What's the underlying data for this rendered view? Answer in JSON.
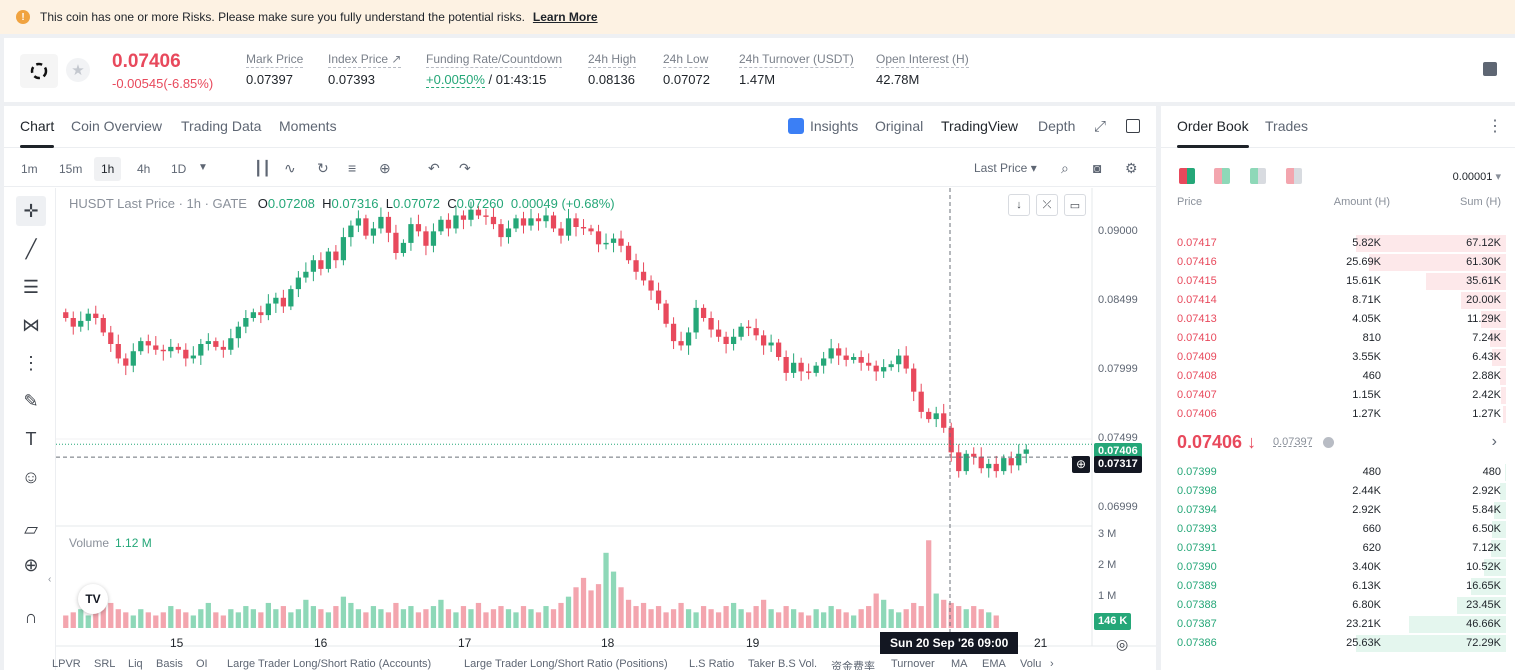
{
  "risk_banner": {
    "text": "This coin has one or more Risks. Please make sure you fully understand the potential risks.",
    "link": "Learn More"
  },
  "ticker": {
    "last_price": "0.07406",
    "change": "-0.00545(-6.85%)",
    "stats": [
      {
        "label": "Mark Price",
        "value": "0.07397"
      },
      {
        "label": "Index Price ↗",
        "value": "0.07393"
      },
      {
        "label": "Funding Rate/Countdown",
        "value_rate": "+0.0050%",
        "value_countdown": "/ 01:43:15"
      },
      {
        "label": "24h High",
        "value": "0.08136"
      },
      {
        "label": "24h Low",
        "value": "0.07072"
      },
      {
        "label": "24h Turnover (USDT)",
        "value": "1.47M"
      },
      {
        "label": "Open Interest (H)",
        "value": "42.78M"
      }
    ]
  },
  "chart_tabs": {
    "chart": "Chart",
    "coin_overview": "Coin Overview",
    "trading_data": "Trading Data",
    "moments": "Moments",
    "insights": "Insights",
    "original": "Original",
    "tradingview": "TradingView",
    "depth": "Depth"
  },
  "timeframes": [
    "1m",
    "15m",
    "1h",
    "4h",
    "1D"
  ],
  "toolbar": {
    "price_type": "Last Price"
  },
  "legend": {
    "symbol": "HUSDT Last Price · 1h · GATE",
    "o_lbl": "O",
    "o": "0.07208",
    "h_lbl": "H",
    "h": "0.07316",
    "l_lbl": "L",
    "l": "0.07072",
    "c_lbl": "C",
    "c": "0.07260",
    "chg": "0.00049 (+0.68%)"
  },
  "volume_legend": {
    "label": "Volume",
    "value": "1.12 M"
  },
  "colors": {
    "up": "#25a778",
    "down": "#e8495c",
    "up_vol": "#8ed8b8",
    "down_vol": "#f3a5ae"
  },
  "chart_data": {
    "type": "candlestick",
    "title": "HUSDT Last Price · 1h · GATE",
    "y_ticks": [
      "0.09000",
      "0.08499",
      "0.07999",
      "0.07499",
      "0.06999"
    ],
    "y_range": [
      0.0684,
      0.0918
    ],
    "x_ticks": [
      "15",
      "16",
      "17",
      "18",
      "19",
      "21"
    ],
    "last_price_tag": "0.07406",
    "crosshair_price_tag": "0.07317",
    "crosshair_date": "Sun 20 Sep '26   09:00",
    "volume_ticks": [
      "3 M",
      "2 M",
      "1 M"
    ],
    "volume_tag": "146 K",
    "close_series": [
      0.0828,
      0.0822,
      0.0826,
      0.0831,
      0.0828,
      0.0818,
      0.081,
      0.08,
      0.0795,
      0.0805,
      0.0812,
      0.0809,
      0.0806,
      0.0805,
      0.0808,
      0.0806,
      0.08,
      0.0802,
      0.081,
      0.0812,
      0.0808,
      0.0806,
      0.0814,
      0.0822,
      0.0828,
      0.0832,
      0.083,
      0.0838,
      0.0842,
      0.0836,
      0.0848,
      0.0856,
      0.086,
      0.0868,
      0.0862,
      0.0874,
      0.0868,
      0.0884,
      0.0892,
      0.0897,
      0.0885,
      0.089,
      0.0898,
      0.0887,
      0.0873,
      0.088,
      0.0893,
      0.0888,
      0.0878,
      0.0888,
      0.0896,
      0.089,
      0.0899,
      0.0896,
      0.0903,
      0.0899,
      0.0898,
      0.0893,
      0.0884,
      0.089,
      0.0897,
      0.0892,
      0.0897,
      0.0895,
      0.0899,
      0.089,
      0.0885,
      0.0897,
      0.0891,
      0.089,
      0.0888,
      0.0879,
      0.088,
      0.0883,
      0.0878,
      0.0868,
      0.086,
      0.0854,
      0.0847,
      0.0838,
      0.0824,
      0.0812,
      0.0809,
      0.0818,
      0.0835,
      0.0828,
      0.082,
      0.0815,
      0.081,
      0.0815,
      0.0822,
      0.0821,
      0.0816,
      0.0809,
      0.0811,
      0.0801,
      0.079,
      0.0797,
      0.0791,
      0.079,
      0.0795,
      0.08,
      0.0807,
      0.0802,
      0.0799,
      0.0801,
      0.0797,
      0.0795,
      0.0791,
      0.0794,
      0.0796,
      0.0802,
      0.0793,
      0.0777,
      0.0763,
      0.0758,
      0.0762,
      0.0752,
      0.0735,
      0.0722,
      0.0734,
      0.0732,
      0.0724,
      0.0727,
      0.0722,
      0.0731,
      0.0726,
      0.0734,
      0.0737
    ],
    "volume_series": [
      0.4,
      0.5,
      0.6,
      0.4,
      0.5,
      0.7,
      0.8,
      0.6,
      0.5,
      0.4,
      0.6,
      0.5,
      0.4,
      0.5,
      0.7,
      0.6,
      0.5,
      0.4,
      0.6,
      0.8,
      0.5,
      0.4,
      0.6,
      0.5,
      0.7,
      0.6,
      0.5,
      0.8,
      0.6,
      0.7,
      0.5,
      0.6,
      0.9,
      0.7,
      0.6,
      0.5,
      0.7,
      1.0,
      0.8,
      0.6,
      0.5,
      0.7,
      0.6,
      0.5,
      0.8,
      0.6,
      0.7,
      0.5,
      0.6,
      0.7,
      0.9,
      0.6,
      0.5,
      0.7,
      0.6,
      0.8,
      0.5,
      0.6,
      0.7,
      0.6,
      0.5,
      0.7,
      0.6,
      0.5,
      0.7,
      0.6,
      0.8,
      1.0,
      1.3,
      1.6,
      1.2,
      1.4,
      2.4,
      1.8,
      1.3,
      0.9,
      0.7,
      0.8,
      0.6,
      0.7,
      0.5,
      0.6,
      0.8,
      0.6,
      0.5,
      0.7,
      0.6,
      0.5,
      0.7,
      0.8,
      0.6,
      0.5,
      0.7,
      0.9,
      0.6,
      0.5,
      0.7,
      0.6,
      0.5,
      0.4,
      0.6,
      0.5,
      0.7,
      0.6,
      0.5,
      0.4,
      0.6,
      0.7,
      1.1,
      0.9,
      0.6,
      0.5,
      0.6,
      0.8,
      0.7,
      2.8,
      1.1,
      0.9,
      0.8,
      0.7,
      0.6,
      0.7,
      0.6,
      0.5,
      0.4
    ]
  },
  "left_tools": [
    "crosshair-icon",
    "trendline-icon",
    "fib-icon",
    "pattern-icon",
    "measure-icon",
    "brush-icon",
    "text-icon",
    "emoji-icon",
    "ruler-icon",
    "zoom-in-icon",
    "magnet-icon"
  ],
  "bottom_indicators": [
    "LPVR",
    "SRL",
    "Liq",
    "Basis",
    "OI",
    "Large Trader Long/Short Ratio (Accounts)",
    "Large Trader Long/Short Ratio (Positions)",
    "L.S Ratio",
    "Taker B.S Vol.",
    "资金费率",
    "Turnover",
    "MA",
    "EMA",
    "Volu"
  ],
  "order_book": {
    "tab_order_book": "Order Book",
    "tab_trades": "Trades",
    "precision": "0.00001",
    "col_price": "Price",
    "col_amount": "Amount (H)",
    "col_sum": "Sum (H)",
    "asks": [
      {
        "price": "0.07417",
        "amount": "5.82K",
        "sum": "67.12K",
        "depth": 1.0
      },
      {
        "price": "0.07416",
        "amount": "25.69K",
        "sum": "61.30K",
        "depth": 0.913
      },
      {
        "price": "0.07415",
        "amount": "15.61K",
        "sum": "35.61K",
        "depth": 0.531
      },
      {
        "price": "0.07414",
        "amount": "8.71K",
        "sum": "20.00K",
        "depth": 0.298
      },
      {
        "price": "0.07413",
        "amount": "4.05K",
        "sum": "11.29K",
        "depth": 0.168
      },
      {
        "price": "0.07410",
        "amount": "810",
        "sum": "7.24K",
        "depth": 0.108
      },
      {
        "price": "0.07409",
        "amount": "3.55K",
        "sum": "6.43K",
        "depth": 0.096
      },
      {
        "price": "0.07408",
        "amount": "460",
        "sum": "2.88K",
        "depth": 0.043
      },
      {
        "price": "0.07407",
        "amount": "1.15K",
        "sum": "2.42K",
        "depth": 0.036
      },
      {
        "price": "0.07406",
        "amount": "1.27K",
        "sum": "1.27K",
        "depth": 0.019
      }
    ],
    "mid_price": "0.07406 ↓",
    "mid_mark": "0.07397",
    "bids": [
      {
        "price": "0.07399",
        "amount": "480",
        "sum": "480",
        "depth": 0.007
      },
      {
        "price": "0.07398",
        "amount": "2.44K",
        "sum": "2.92K",
        "depth": 0.04
      },
      {
        "price": "0.07394",
        "amount": "2.92K",
        "sum": "5.84K",
        "depth": 0.081
      },
      {
        "price": "0.07393",
        "amount": "660",
        "sum": "6.50K",
        "depth": 0.09
      },
      {
        "price": "0.07391",
        "amount": "620",
        "sum": "7.12K",
        "depth": 0.098
      },
      {
        "price": "0.07390",
        "amount": "3.40K",
        "sum": "10.52K",
        "depth": 0.145
      },
      {
        "price": "0.07389",
        "amount": "6.13K",
        "sum": "16.65K",
        "depth": 0.23
      },
      {
        "price": "0.07388",
        "amount": "6.80K",
        "sum": "23.45K",
        "depth": 0.324
      },
      {
        "price": "0.07387",
        "amount": "23.21K",
        "sum": "46.66K",
        "depth": 0.645
      },
      {
        "price": "0.07386",
        "amount": "25.63K",
        "sum": "72.29K",
        "depth": 1.0
      }
    ]
  }
}
